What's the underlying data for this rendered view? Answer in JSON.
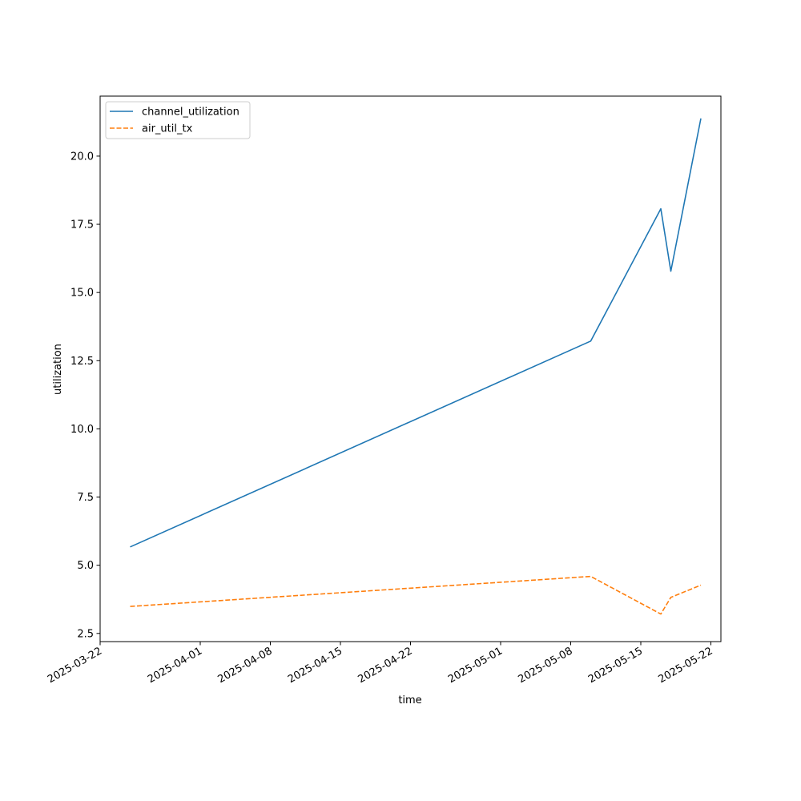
{
  "chart_data": {
    "type": "line",
    "title": "",
    "xlabel": "time",
    "ylabel": "utilization",
    "x_tick_labels": [
      "2025-03-22",
      "2025-04-01",
      "2025-04-08",
      "2025-04-15",
      "2025-04-22",
      "2025-05-01",
      "2025-05-08",
      "2025-05-15",
      "2025-05-22"
    ],
    "y_tick_labels": [
      "2.5",
      "5.0",
      "7.5",
      "10.0",
      "12.5",
      "15.0",
      "17.5",
      "20.0"
    ],
    "xlim": [
      "2025-03-22",
      "2025-05-23"
    ],
    "ylim": [
      2.2,
      22.2
    ],
    "grid": false,
    "legend_position": "upper-left",
    "series": [
      {
        "name": "channel_utilization",
        "color": "#1f77b4",
        "style": "solid",
        "x": [
          "2025-03-25",
          "2025-05-10",
          "2025-05-17",
          "2025-05-18",
          "2025-05-21"
        ],
        "values": [
          5.67,
          13.22,
          18.07,
          15.78,
          21.38
        ]
      },
      {
        "name": "air_util_tx",
        "color": "#ff7f0e",
        "style": "dashed",
        "x": [
          "2025-03-25",
          "2025-05-10",
          "2025-05-17",
          "2025-05-18",
          "2025-05-21"
        ],
        "values": [
          3.49,
          4.59,
          3.21,
          3.82,
          4.27
        ]
      }
    ]
  }
}
